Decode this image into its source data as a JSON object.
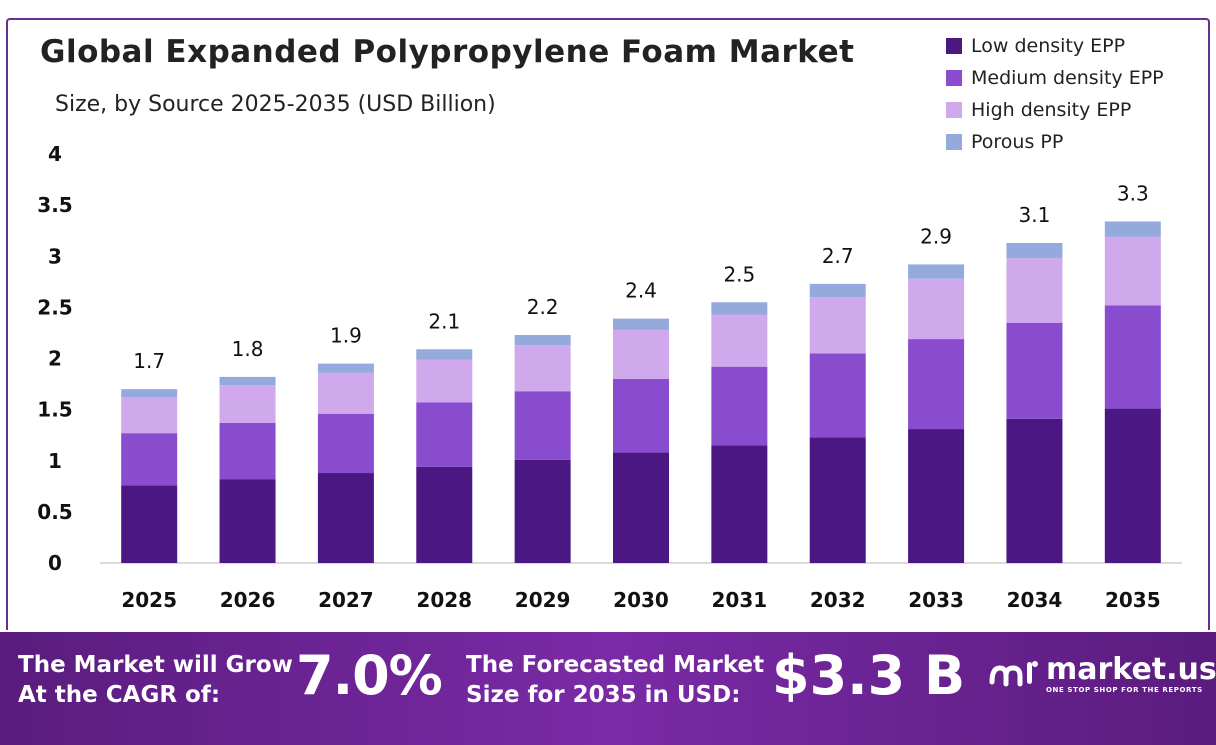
{
  "chart_data": {
    "type": "bar",
    "stacked": true,
    "title": "Global Expanded Polypropylene Foam Market",
    "subtitle": "Size, by Source  2025-2035 (USD Billion)",
    "categories": [
      "2025",
      "2026",
      "2027",
      "2028",
      "2029",
      "2030",
      "2031",
      "2032",
      "2033",
      "2034",
      "2035"
    ],
    "series": [
      {
        "name": "Low density EPP",
        "color": "#4b1782",
        "values": [
          0.76,
          0.82,
          0.88,
          0.94,
          1.01,
          1.08,
          1.15,
          1.23,
          1.31,
          1.41,
          1.51
        ]
      },
      {
        "name": "Medium density EPP",
        "color": "#8a4ccf",
        "values": [
          0.51,
          0.55,
          0.58,
          0.63,
          0.67,
          0.72,
          0.77,
          0.82,
          0.88,
          0.94,
          1.01
        ]
      },
      {
        "name": "High density EPP",
        "color": "#d0a8ec",
        "values": [
          0.35,
          0.37,
          0.4,
          0.42,
          0.45,
          0.48,
          0.51,
          0.55,
          0.59,
          0.63,
          0.67
        ]
      },
      {
        "name": "Porous PP",
        "color": "#94a9dc",
        "values": [
          0.08,
          0.08,
          0.09,
          0.1,
          0.1,
          0.11,
          0.12,
          0.13,
          0.14,
          0.15,
          0.15
        ]
      }
    ],
    "totals": [
      "1.7",
      "1.8",
      "1.9",
      "2.1",
      "2.2",
      "2.4",
      "2.5",
      "2.7",
      "2.9",
      "3.1",
      "3.3"
    ],
    "ylim": [
      0,
      4
    ],
    "yticks": [
      "0",
      "0.5",
      "1",
      "1.5",
      "2",
      "2.5",
      "3",
      "3.5",
      "4"
    ],
    "legend_position": "top-right",
    "grid": false
  },
  "banner": {
    "cagr_label": "The Market will Grow At the CAGR of:",
    "cagr_value": "7.0%",
    "forecast_label": "The Forecasted Market Size for 2035 in USD:",
    "forecast_value": "$3.3 B"
  },
  "brand": {
    "name": "market.us",
    "tagline": "ONE STOP SHOP FOR THE REPORTS"
  }
}
